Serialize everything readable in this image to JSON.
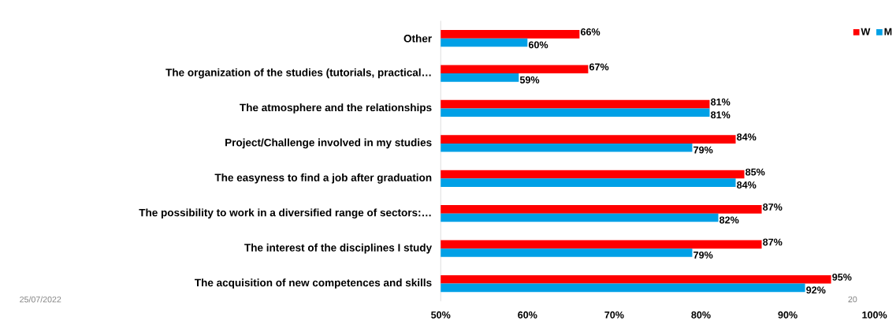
{
  "chart_data": {
    "type": "bar",
    "orientation": "horizontal",
    "categories": [
      "Other",
      "The organization of the studies (tutorials, practical…",
      "The atmosphere and the relationships",
      "Project/Challenge involved in my studies",
      "The easyness to find a job after graduation",
      "The possibility to work in a diversified range of sectors:…",
      "The interest of the disciplines I study",
      "The acquisition of new competences and skills"
    ],
    "series": [
      {
        "name": "W",
        "color": "#ff0000",
        "values": [
          66,
          67,
          81,
          84,
          85,
          87,
          87,
          95
        ],
        "value_labels": [
          "66%",
          "67%",
          "81%",
          "84%",
          "85%",
          "87%",
          "87%",
          "95%"
        ]
      },
      {
        "name": "M",
        "color": "#00a0e6",
        "values": [
          60,
          59,
          81,
          79,
          84,
          82,
          79,
          92
        ],
        "value_labels": [
          "60%",
          "59%",
          "81%",
          "79%",
          "84%",
          "82%",
          "79%",
          "92%"
        ]
      }
    ],
    "xlim": [
      50,
      100
    ],
    "xticks": [
      {
        "value": 50,
        "label": "50%"
      },
      {
        "value": 60,
        "label": "60%"
      },
      {
        "value": 70,
        "label": "70%"
      },
      {
        "value": 80,
        "label": "80%"
      },
      {
        "value": 90,
        "label": "90%"
      },
      {
        "value": 100,
        "label": "100%"
      }
    ],
    "legend": "top right",
    "annotations": [
      "25/07/2022",
      "20"
    ]
  }
}
